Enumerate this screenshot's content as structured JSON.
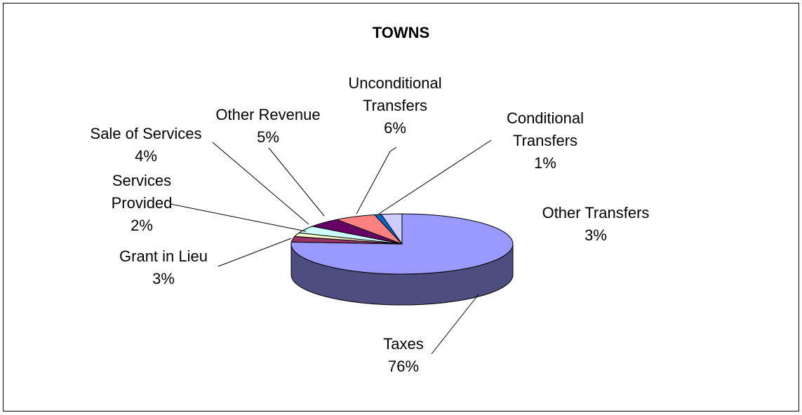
{
  "chart_data": {
    "type": "pie",
    "title": "TOWNS",
    "categories": [
      "Taxes",
      "Grant in Lieu",
      "Services Provided",
      "Sale of Services",
      "Other Revenue",
      "Unconditional Transfers",
      "Conditional Transfers",
      "Other Transfers"
    ],
    "values": [
      76,
      3,
      2,
      4,
      5,
      6,
      1,
      3
    ],
    "value_labels": [
      "76%",
      "3%",
      "2%",
      "4%",
      "5%",
      "6%",
      "1%",
      "3%"
    ],
    "colors": [
      "#9999ff",
      "#993366",
      "#ffffcc",
      "#ccffff",
      "#660066",
      "#ff8080",
      "#0066cc",
      "#ccccff"
    ]
  }
}
